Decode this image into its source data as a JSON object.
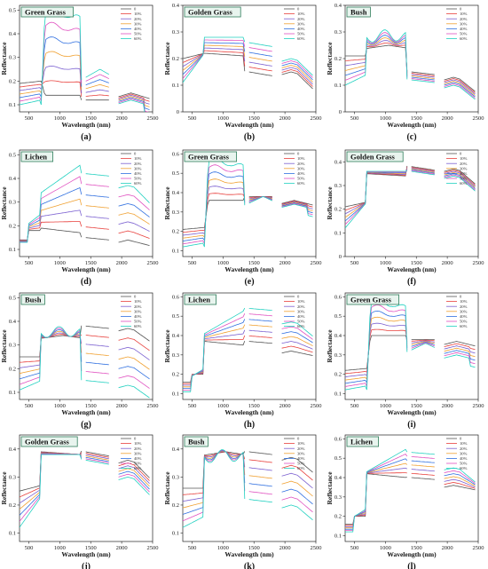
{
  "figure": {
    "background": "#ffffff"
  },
  "chart_data": [
    {
      "type": "line",
      "panel": "(a)",
      "title": "Green Grass",
      "kind": "green",
      "xlabel": "Wavelength (nm)",
      "ylabel": "Reflectance",
      "xlim": [
        350,
        2500
      ],
      "xticks": [
        500,
        1000,
        1500,
        2000,
        2500
      ],
      "ylim": [
        0.07,
        0.52
      ],
      "yticks": [
        0.1,
        0.2,
        0.3,
        0.4,
        0.5
      ],
      "base": [
        0.2,
        0.14,
        0.12,
        0.15
      ],
      "top": [
        0.1,
        0.49,
        0.25,
        0.12
      ],
      "mid": 0.24
    },
    {
      "type": "line",
      "panel": "(b)",
      "title": "Golden Grass",
      "kind": "golden",
      "xlabel": "Wavelength (nm)",
      "ylabel": "Reflectance",
      "xlim": [
        350,
        2500
      ],
      "xticks": [
        500,
        1000,
        1500,
        2000,
        2500
      ],
      "ylim": [
        0.0,
        0.4
      ],
      "yticks": [
        0.0,
        0.1,
        0.2,
        0.3,
        0.4
      ],
      "base": [
        0.2,
        0.22,
        0.15,
        0.15
      ],
      "top": [
        0.11,
        0.28,
        0.26,
        0.2
      ],
      "mid": 0.22
    },
    {
      "type": "line",
      "panel": "(c)",
      "title": "Bush",
      "kind": "bush",
      "xlabel": "Wavelength (nm)",
      "ylabel": "Reflectance",
      "xlim": [
        350,
        2500
      ],
      "xticks": [
        500,
        1000,
        1500,
        2000,
        2500
      ],
      "ylim": [
        0.0,
        0.4
      ],
      "yticks": [
        0.0,
        0.1,
        0.2,
        0.3,
        0.4
      ],
      "base": [
        0.21,
        0.25,
        0.15,
        0.13
      ],
      "top": [
        0.1,
        0.29,
        0.12,
        0.1
      ],
      "mid": 0.22
    },
    {
      "type": "line",
      "panel": "(d)",
      "title": "Lichen",
      "kind": "lichen",
      "xlabel": "Wavelength (nm)",
      "ylabel": "Reflectance",
      "xlim": [
        350,
        2500
      ],
      "xticks": [
        500,
        1000,
        1500,
        2000,
        2500
      ],
      "ylim": [
        0.07,
        0.52
      ],
      "yticks": [
        0.1,
        0.2,
        0.3,
        0.4,
        0.5
      ],
      "base": [
        0.2,
        0.17,
        0.15,
        0.14
      ],
      "top": [
        0.13,
        0.46,
        0.42,
        0.37
      ],
      "mid": 0.24
    },
    {
      "type": "line",
      "panel": "(e)",
      "title": "Green Grass",
      "kind": "green",
      "xlabel": "Wavelength (nm)",
      "ylabel": "Reflectance",
      "xlim": [
        350,
        2500
      ],
      "xticks": [
        500,
        1000,
        1500,
        2000,
        2500
      ],
      "ylim": [
        0.07,
        0.62
      ],
      "yticks": [
        0.1,
        0.2,
        0.3,
        0.4,
        0.5,
        0.6
      ],
      "base": [
        0.22,
        0.36,
        0.38,
        0.36
      ],
      "top": [
        0.12,
        0.56,
        0.38,
        0.34
      ],
      "mid": 0.26
    },
    {
      "type": "line",
      "panel": "(f)",
      "title": "Golden Grass",
      "kind": "golden2",
      "xlabel": "Wavelength (nm)",
      "ylabel": "Reflectance",
      "xlim": [
        350,
        2500
      ],
      "xticks": [
        500,
        1000,
        1500,
        2000,
        2500
      ],
      "ylim": [
        0.0,
        0.45
      ],
      "yticks": [
        0.0,
        0.1,
        0.2,
        0.3,
        0.4
      ],
      "base": [
        0.21,
        0.35,
        0.38,
        0.37
      ],
      "top": [
        0.12,
        0.36,
        0.36,
        0.34
      ],
      "mid": 0.3
    },
    {
      "type": "line",
      "panel": "(g)",
      "title": "Bush",
      "kind": "bush2",
      "xlabel": "Wavelength (nm)",
      "ylabel": "Reflectance",
      "xlim": [
        350,
        2500
      ],
      "xticks": [
        500,
        1000,
        1500,
        2000,
        2500
      ],
      "ylim": [
        0.07,
        0.52
      ],
      "yticks": [
        0.1,
        0.2,
        0.3,
        0.4,
        0.5
      ],
      "base": [
        0.25,
        0.34,
        0.38,
        0.37
      ],
      "top": [
        0.11,
        0.36,
        0.15,
        0.13
      ],
      "mid": 0.3
    },
    {
      "type": "line",
      "panel": "(h)",
      "title": "Lichen",
      "kind": "lichen2",
      "xlabel": "Wavelength (nm)",
      "ylabel": "Reflectance",
      "xlim": [
        350,
        2500
      ],
      "xticks": [
        500,
        1000,
        1500,
        2000,
        2500
      ],
      "ylim": [
        0.07,
        0.62
      ],
      "yticks": [
        0.1,
        0.2,
        0.3,
        0.4,
        0.5,
        0.6
      ],
      "base": [
        0.22,
        0.35,
        0.37,
        0.32
      ],
      "top": [
        0.11,
        0.53,
        0.54,
        0.47
      ],
      "mid": 0.28
    },
    {
      "type": "line",
      "panel": "(i)",
      "title": "Green Grass",
      "kind": "green",
      "xlabel": "Wavelength (nm)",
      "ylabel": "Reflectance",
      "xlim": [
        350,
        2500
      ],
      "xticks": [
        500,
        1000,
        1500,
        2000,
        2500
      ],
      "ylim": [
        0.07,
        0.62
      ],
      "yticks": [
        0.1,
        0.2,
        0.3,
        0.4,
        0.5,
        0.6
      ],
      "base": [
        0.23,
        0.4,
        0.38,
        0.37
      ],
      "top": [
        0.12,
        0.57,
        0.36,
        0.3
      ],
      "mid": 0.28
    },
    {
      "type": "line",
      "panel": "(j)",
      "title": "Golden Grass",
      "kind": "golden3",
      "xlabel": "Wavelength (nm)",
      "ylabel": "Reflectance",
      "xlim": [
        350,
        2500
      ],
      "xticks": [
        500,
        1000,
        1500,
        2000,
        2500
      ],
      "ylim": [
        0.07,
        0.45
      ],
      "yticks": [
        0.1,
        0.2,
        0.3,
        0.4
      ],
      "base": [
        0.25,
        0.39,
        0.39,
        0.36
      ],
      "top": [
        0.12,
        0.38,
        0.36,
        0.3
      ],
      "mid": 0.33
    },
    {
      "type": "line",
      "panel": "(k)",
      "title": "Bush",
      "kind": "bush3",
      "xlabel": "Wavelength (nm)",
      "ylabel": "Reflectance",
      "xlim": [
        350,
        2500
      ],
      "xticks": [
        500,
        1000,
        1500,
        2000,
        2500
      ],
      "ylim": [
        0.07,
        0.45
      ],
      "yticks": [
        0.1,
        0.2,
        0.3,
        0.4
      ],
      "base": [
        0.26,
        0.39,
        0.39,
        0.37
      ],
      "top": [
        0.12,
        0.38,
        0.22,
        0.2
      ],
      "mid": 0.28
    },
    {
      "type": "line",
      "panel": "(l)",
      "title": "Lichen",
      "kind": "lichen3",
      "xlabel": "Wavelength (nm)",
      "ylabel": "Reflectance",
      "xlim": [
        350,
        2500
      ],
      "xticks": [
        500,
        1000,
        1500,
        2000,
        2500
      ],
      "ylim": [
        0.07,
        0.62
      ],
      "yticks": [
        0.1,
        0.2,
        0.3,
        0.4,
        0.5,
        0.6
      ],
      "base": [
        0.22,
        0.4,
        0.4,
        0.36
      ],
      "top": [
        0.12,
        0.55,
        0.53,
        0.45
      ],
      "mid": 0.28
    }
  ],
  "legend": {
    "labels": [
      "0",
      "10%",
      "20%",
      "30%",
      "40%",
      "50%",
      "60%"
    ],
    "colors": [
      "#555555",
      "#e8403c",
      "#7a5fd0",
      "#f0a030",
      "#2f6fe0",
      "#e050c0",
      "#20d0c0"
    ]
  }
}
